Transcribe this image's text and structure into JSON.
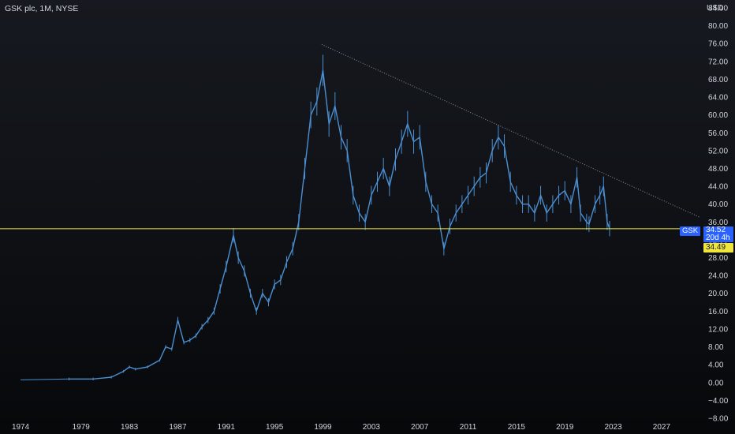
{
  "header": {
    "symbol_title": "GSK plc, 1M, NYSE",
    "currency": "USD"
  },
  "colors": {
    "series": "#4a8fd1",
    "horizontal_line": "#f0e53c",
    "trend_line": "#8a8e99",
    "price_tag": "#2962ff",
    "axis_text": "#d1d4dc"
  },
  "price_tags": {
    "ticker": "GSK",
    "last_price": "34.52",
    "countdown": "20d 4h",
    "horizontal_line_price": "34.49"
  },
  "chart_data": {
    "type": "line",
    "title": "GSK plc, 1M, NYSE",
    "xlabel": "",
    "ylabel": "USD",
    "x_ticks": [
      "1974",
      "1979",
      "1983",
      "1987",
      "1991",
      "1995",
      "1999",
      "2003",
      "2007",
      "2011",
      "2015",
      "2019",
      "2023",
      "2027"
    ],
    "y_ticks": [
      "−8.00",
      "−4.00",
      "0.00",
      "4.00",
      "8.00",
      "12.00",
      "16.00",
      "20.00",
      "24.00",
      "28.00",
      "32.00",
      "36.00",
      "40.00",
      "44.00",
      "48.00",
      "52.00",
      "56.00",
      "60.00",
      "64.00",
      "68.00",
      "72.00",
      "76.00",
      "80.00",
      "84.00"
    ],
    "ylim": [
      -8,
      84
    ],
    "xlim": [
      1972.3,
      2030.2
    ],
    "grid": false,
    "series": [
      {
        "x": [
          1978.0,
          1980.0,
          1981.5,
          1982.5,
          1983.0,
          1983.5,
          1984.5,
          1985.5,
          1986.0,
          1986.5,
          1987.0,
          1987.5,
          1988.0,
          1988.5,
          1989.0,
          1989.5,
          1990.0,
          1990.5,
          1991.0,
          1991.6,
          1992.0,
          1992.5,
          1993.0,
          1993.5,
          1994.0,
          1994.5,
          1995.0,
          1995.5,
          1996.0,
          1996.5,
          1997.0,
          1997.5,
          1998.0,
          1998.5,
          1999.0,
          1999.5,
          2000.0,
          2000.5,
          2001.0,
          2001.5,
          2002.0,
          2002.5,
          2003.0,
          2003.5,
          2004.0,
          2004.5,
          2005.0,
          2005.5,
          2006.0,
          2006.5,
          2007.0,
          2007.5,
          2008.0,
          2008.5,
          2009.0,
          2009.5,
          2010.0,
          2010.5,
          2011.0,
          2011.5,
          2012.0,
          2012.5,
          2013.0,
          2013.5,
          2014.0,
          2014.5,
          2015.0,
          2015.5,
          2016.0,
          2016.5,
          2017.0,
          2017.5,
          2018.0,
          2018.5,
          2019.0,
          2019.5,
          2020.0,
          2020.3,
          2020.8,
          2021.0,
          2021.5,
          2021.9,
          2022.2,
          2022.5,
          2022.7
        ],
        "values": [
          0.8,
          0.8,
          1.2,
          2.5,
          3.5,
          3.0,
          3.5,
          5.0,
          8.0,
          7.5,
          14.0,
          9.0,
          9.5,
          10.5,
          12.5,
          14.0,
          16.0,
          21.0,
          26.0,
          33.0,
          28.0,
          25.0,
          20.0,
          16.0,
          20.0,
          18.0,
          22.0,
          23.0,
          27.0,
          30.0,
          36.0,
          48.0,
          60.0,
          63.0,
          70.0,
          58.0,
          62.0,
          55.0,
          52.0,
          42.0,
          38.0,
          36.0,
          42.0,
          45.0,
          48.0,
          44.0,
          50.0,
          54.0,
          58.0,
          54.0,
          55.0,
          45.0,
          40.0,
          38.0,
          30.0,
          35.0,
          38.0,
          40.0,
          42.0,
          44.0,
          46.0,
          47.0,
          52.0,
          55.0,
          53.0,
          45.0,
          42.0,
          40.0,
          40.0,
          38.0,
          42.0,
          38.0,
          40.0,
          42.0,
          43.0,
          40.0,
          46.0,
          38.0,
          36.0,
          35.5,
          40.0,
          42.0,
          44.0,
          36.0,
          34.52
        ]
      }
    ],
    "annotations": [
      {
        "type": "trend_line",
        "from": {
          "x": 1998.9,
          "y": 75.8
        },
        "to": {
          "x": 2030.2,
          "y": 37.0
        }
      },
      {
        "type": "horizontal_line",
        "y": 34.49
      }
    ]
  }
}
